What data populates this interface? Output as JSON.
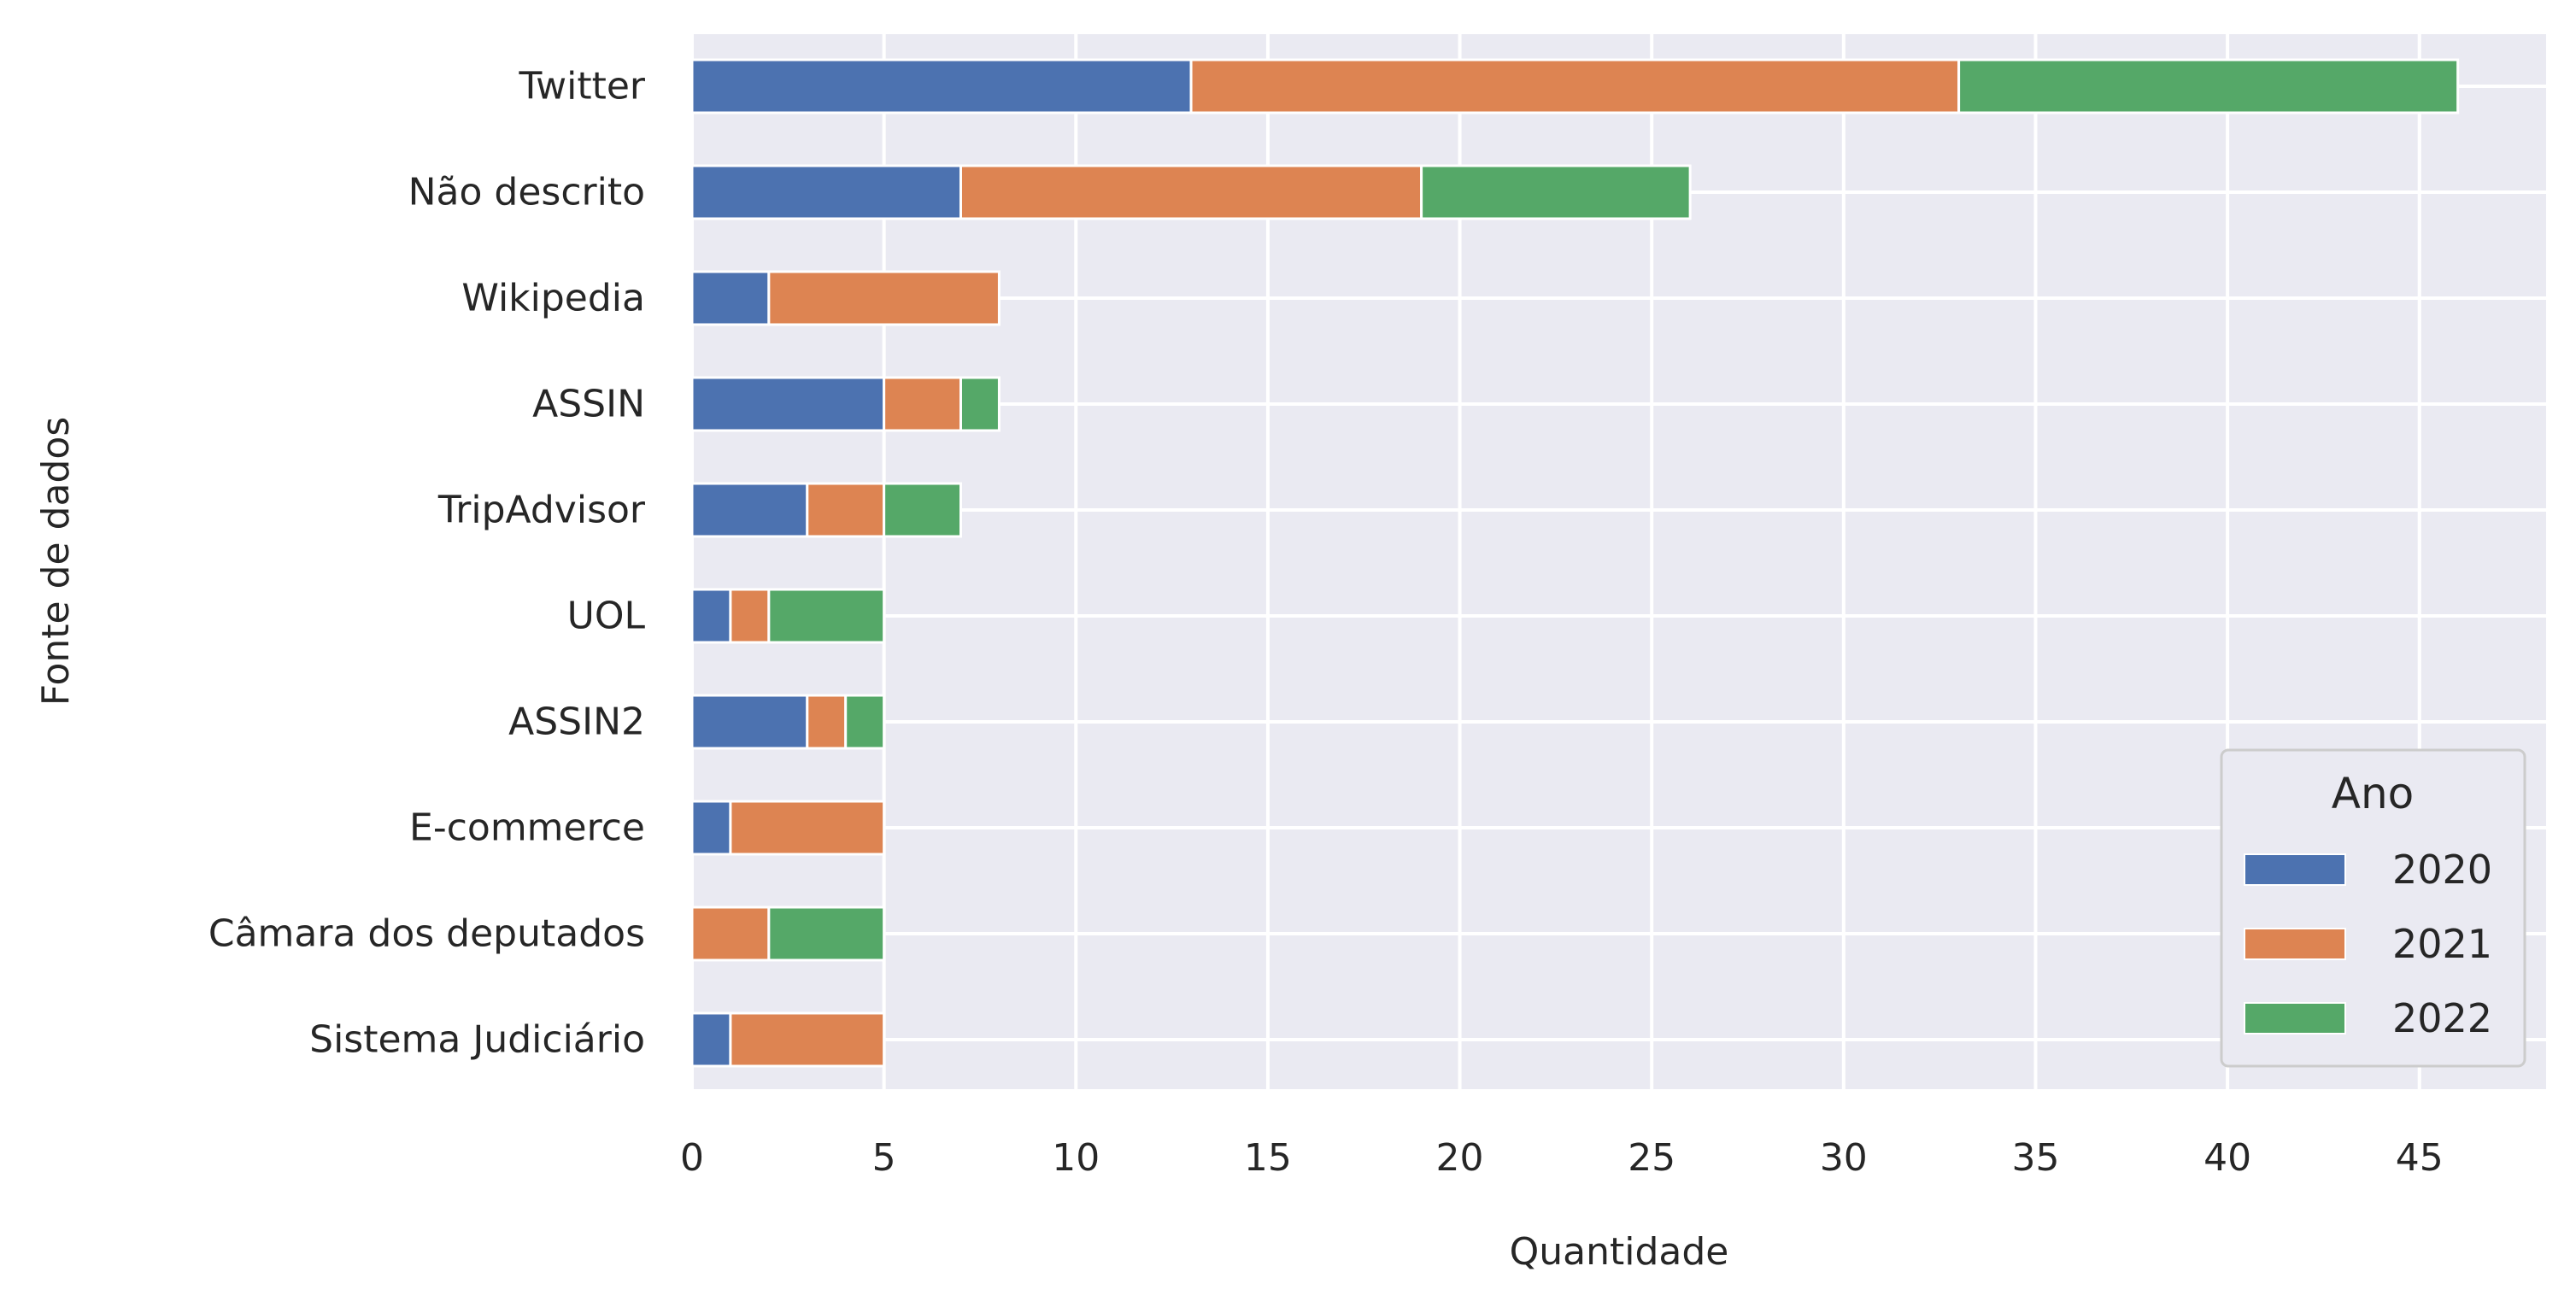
{
  "chart_data": {
    "type": "bar",
    "orientation": "horizontal",
    "stacked": true,
    "categories": [
      "Twitter",
      "Não descrito",
      "Wikipedia",
      "ASSIN",
      "TripAdvisor",
      "UOL",
      "ASSIN2",
      "E-commerce",
      "Câmara dos deputados",
      "Sistema Judiciário"
    ],
    "series": [
      {
        "name": "2020",
        "color": "#4c72b0",
        "values": [
          13,
          7,
          2,
          5,
          3,
          1,
          3,
          1,
          0,
          1
        ]
      },
      {
        "name": "2021",
        "color": "#dd8452",
        "values": [
          20,
          12,
          6,
          2,
          2,
          1,
          1,
          4,
          2,
          4
        ]
      },
      {
        "name": "2022",
        "color": "#55a868",
        "values": [
          13,
          7,
          0,
          1,
          2,
          3,
          1,
          0,
          3,
          0
        ]
      }
    ],
    "xlabel": "Quantidade",
    "ylabel": "Fonte de dados",
    "xlim": [
      0,
      48.3
    ],
    "xticks": [
      0,
      5,
      10,
      15,
      20,
      25,
      30,
      35,
      40,
      45
    ],
    "grid": true,
    "legend": {
      "title": "Ano",
      "position": "lower-right"
    }
  }
}
